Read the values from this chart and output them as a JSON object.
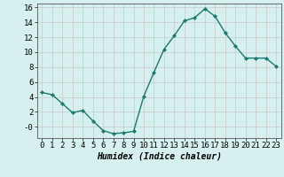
{
  "x": [
    0,
    1,
    2,
    3,
    4,
    5,
    6,
    7,
    8,
    9,
    10,
    11,
    12,
    13,
    14,
    15,
    16,
    17,
    18,
    19,
    20,
    21,
    22,
    23
  ],
  "y": [
    4.6,
    4.3,
    3.1,
    1.9,
    2.2,
    0.8,
    -0.5,
    -0.9,
    -0.8,
    -0.6,
    4.1,
    7.3,
    10.4,
    12.2,
    14.2,
    14.6,
    15.8,
    14.8,
    12.6,
    10.8,
    9.2,
    9.2,
    9.2,
    8.1
  ],
  "line_color": "#1a7a6e",
  "marker": "D",
  "marker_size": 2,
  "line_width": 1.0,
  "xlabel": "Humidex (Indice chaleur)",
  "xlabel_fontsize": 7,
  "xlabel_style": "italic",
  "xlabel_weight": "bold",
  "bg_color": "#d6f0f0",
  "grid_color": "#c8c8c8",
  "xlim": [
    -0.5,
    23.5
  ],
  "ylim": [
    -1.5,
    16.5
  ],
  "yticks": [
    0,
    2,
    4,
    6,
    8,
    10,
    12,
    14,
    16
  ],
  "ytick_labels": [
    "-0",
    "2",
    "4",
    "6",
    "8",
    "10",
    "12",
    "14",
    "16"
  ],
  "xticks": [
    0,
    1,
    2,
    3,
    4,
    5,
    6,
    7,
    8,
    9,
    10,
    11,
    12,
    13,
    14,
    15,
    16,
    17,
    18,
    19,
    20,
    21,
    22,
    23
  ],
  "tick_fontsize": 6.5
}
